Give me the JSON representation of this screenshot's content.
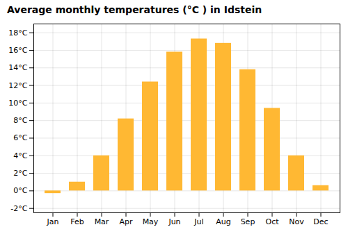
{
  "chart_data": {
    "type": "bar",
    "title": "Average monthly temperatures (°C ) in Idstein",
    "categories": [
      "Jan",
      "Feb",
      "Mar",
      "Apr",
      "May",
      "Jun",
      "Jul",
      "Aug",
      "Sep",
      "Oct",
      "Nov",
      "Dec"
    ],
    "values": [
      -0.3,
      1.0,
      4.0,
      8.2,
      12.4,
      15.8,
      17.3,
      16.8,
      13.8,
      9.4,
      4.0,
      0.6
    ],
    "color": "#FFB833",
    "ylim": [
      -2.5,
      19
    ],
    "yticks": [
      {
        "value": -2,
        "label": "-2°C"
      },
      {
        "value": 0,
        "label": "0°C"
      },
      {
        "value": 2,
        "label": "2°C"
      },
      {
        "value": 4,
        "label": "4°C"
      },
      {
        "value": 6,
        "label": "6°C"
      },
      {
        "value": 8,
        "label": "8°C"
      },
      {
        "value": 10,
        "label": "10°C"
      },
      {
        "value": 12,
        "label": "12°C"
      },
      {
        "value": 14,
        "label": "14°C"
      },
      {
        "value": 16,
        "label": "16°C"
      },
      {
        "value": 18,
        "label": "18°C"
      }
    ],
    "grid": true
  }
}
